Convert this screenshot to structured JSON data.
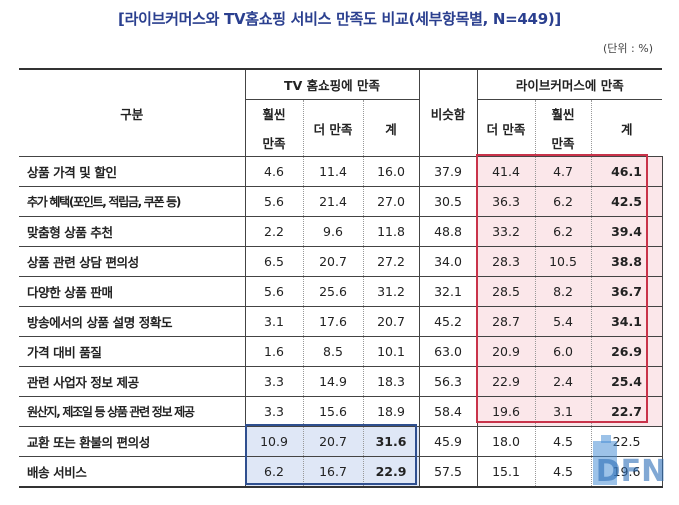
{
  "title": "[라이브커머스와 TV홈쇼핑 서비스 만족도 비교(세부항목별, N=449)]",
  "unit": "(단위 : %)",
  "header": {
    "category": "구분",
    "tv_group": "TV 홈쇼핑에 만족",
    "similar": "비슷함",
    "live_group": "라이브커머스에 만족",
    "much_more_1": "훨씬",
    "much_more_2": "만족",
    "more": "더 만족",
    "total": "계"
  },
  "rows": [
    {
      "label": "상품 가격 및 할인",
      "tv_much": "4.6",
      "tv_more": "11.4",
      "tv_total": "16.0",
      "similar": "37.9",
      "live_more": "41.4",
      "live_much": "4.7",
      "live_total": "46.1"
    },
    {
      "label": "추가 혜택(포인트, 적립금, 쿠폰 등)",
      "tv_much": "5.6",
      "tv_more": "21.4",
      "tv_total": "27.0",
      "similar": "30.5",
      "live_more": "36.3",
      "live_much": "6.2",
      "live_total": "42.5"
    },
    {
      "label": "맞춤형 상품 추천",
      "tv_much": "2.2",
      "tv_more": "9.6",
      "tv_total": "11.8",
      "similar": "48.8",
      "live_more": "33.2",
      "live_much": "6.2",
      "live_total": "39.4"
    },
    {
      "label": "상품 관련 상담 편의성",
      "tv_much": "6.5",
      "tv_more": "20.7",
      "tv_total": "27.2",
      "similar": "34.0",
      "live_more": "28.3",
      "live_much": "10.5",
      "live_total": "38.8"
    },
    {
      "label": "다양한 상품 판매",
      "tv_much": "5.6",
      "tv_more": "25.6",
      "tv_total": "31.2",
      "similar": "32.1",
      "live_more": "28.5",
      "live_much": "8.2",
      "live_total": "36.7"
    },
    {
      "label": "방송에서의 상품 설명 정확도",
      "tv_much": "3.1",
      "tv_more": "17.6",
      "tv_total": "20.7",
      "similar": "45.2",
      "live_more": "28.7",
      "live_much": "5.4",
      "live_total": "34.1"
    },
    {
      "label": "가격 대비 품질",
      "tv_much": "1.6",
      "tv_more": "8.5",
      "tv_total": "10.1",
      "similar": "63.0",
      "live_more": "20.9",
      "live_much": "6.0",
      "live_total": "26.9"
    },
    {
      "label": "관련 사업자 정보 제공",
      "tv_much": "3.3",
      "tv_more": "14.9",
      "tv_total": "18.3",
      "similar": "56.3",
      "live_more": "22.9",
      "live_much": "2.4",
      "live_total": "25.4"
    },
    {
      "label": "원산지, 제조일 등 상품 관련 정보 제공",
      "tv_much": "3.3",
      "tv_more": "15.6",
      "tv_total": "18.9",
      "similar": "58.4",
      "live_more": "19.6",
      "live_much": "3.1",
      "live_total": "22.7"
    },
    {
      "label": "교환 또는 환불의 편의성",
      "tv_much": "10.9",
      "tv_more": "20.7",
      "tv_total": "31.6",
      "similar": "45.9",
      "live_more": "18.0",
      "live_much": "4.5",
      "live_total": "22.5"
    },
    {
      "label": "배송 서비스",
      "tv_much": "6.2",
      "tv_more": "16.7",
      "tv_total": "22.9",
      "similar": "57.5",
      "live_more": "15.1",
      "live_much": "4.5",
      "live_total": "19.6"
    }
  ],
  "logo_text": "DFN",
  "colors": {
    "title": "#2a3f8f",
    "red_highlight": "#c9334a",
    "red_fill": "#fbe7ea",
    "blue_highlight": "#2f4f8f",
    "blue_fill": "#dfe7f6"
  }
}
